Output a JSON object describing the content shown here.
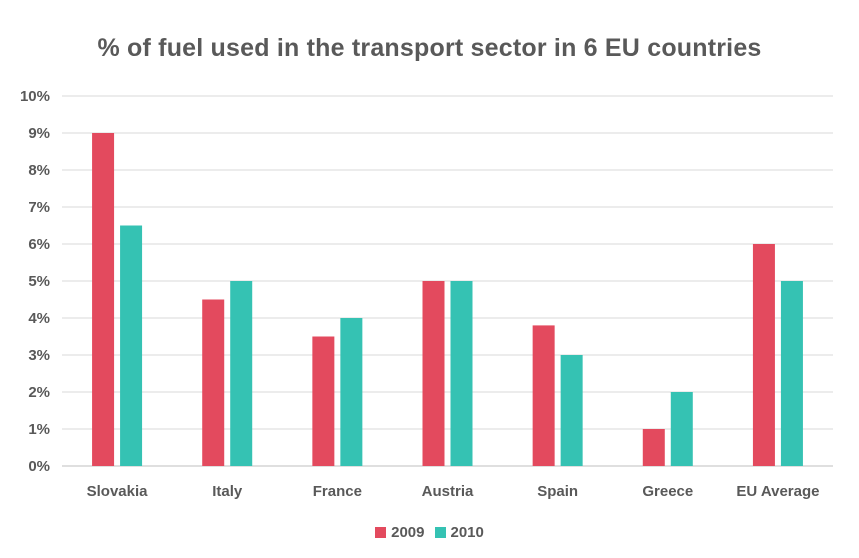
{
  "chart_data": {
    "type": "bar",
    "title": "%  of fuel used in the transport sector in 6 EU countries",
    "xlabel": "",
    "ylabel": "",
    "categories": [
      "Slovakia",
      "Italy",
      "France",
      "Austria",
      "Spain",
      "Greece",
      "EU Average"
    ],
    "series": [
      {
        "name": "2009",
        "color": "#e34a5e",
        "values": [
          9,
          4.5,
          3.5,
          5,
          3.8,
          1,
          6
        ]
      },
      {
        "name": "2010",
        "color": "#35c2b3",
        "values": [
          6.5,
          5,
          4,
          5,
          3,
          2,
          5
        ]
      }
    ],
    "ylim": [
      0,
      10
    ],
    "yticks": [
      "0%",
      "1%",
      "2%",
      "3%",
      "4%",
      "5%",
      "6%",
      "7%",
      "8%",
      "9%",
      "10%"
    ],
    "grid": true,
    "legend_position": "bottom"
  }
}
